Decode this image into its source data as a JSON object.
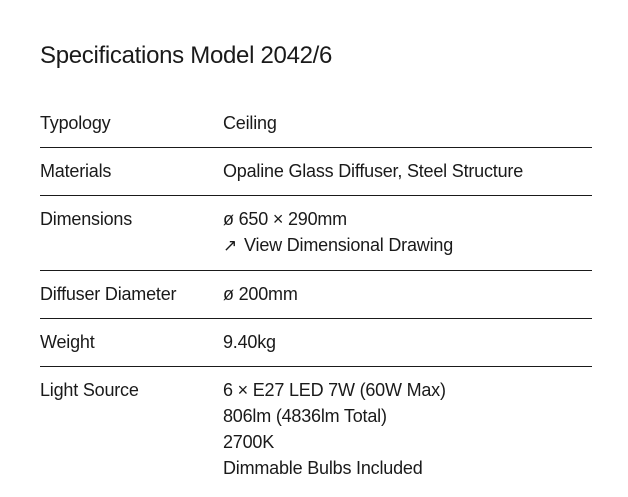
{
  "page": {
    "title": "Specifications Model 2042/6"
  },
  "colors": {
    "background": "#ffffff",
    "text": "#1a1a1a",
    "divider": "#1a1a1a"
  },
  "specs": {
    "rows": [
      {
        "label": "Typology",
        "values": [
          "Ceiling"
        ]
      },
      {
        "label": "Materials",
        "values": [
          "Opaline Glass Diffuser, Steel Structure"
        ]
      },
      {
        "label": "Dimensions",
        "values": [
          "ø 650 × 290mm"
        ],
        "link": {
          "icon": "↗",
          "label": "View Dimensional Drawing"
        }
      },
      {
        "label": "Diffuser Diameter",
        "values": [
          "ø 200mm"
        ]
      },
      {
        "label": "Weight",
        "values": [
          "9.40kg"
        ]
      },
      {
        "label": "Light Source",
        "values": [
          "6 × E27 LED 7W (60W Max)",
          "806lm (4836lm Total)",
          "2700K",
          "Dimmable Bulbs Included"
        ]
      }
    ]
  }
}
